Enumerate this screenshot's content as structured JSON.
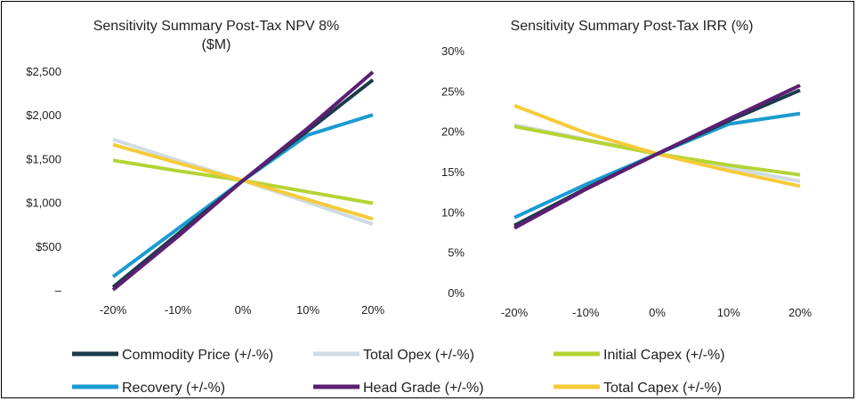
{
  "colors": {
    "commodity": "#1b3a4b",
    "opex": "#d0dbe5",
    "initcapex": "#b5d334",
    "recovery": "#1b9bd1",
    "headgrade": "#5b1f73",
    "totcapex": "#f5cb3a"
  },
  "chart_data": [
    {
      "type": "line",
      "title_line1": "Sensitivity Summary Post-Tax NPV 8%",
      "title_line2": "($M)",
      "x": [
        "-20%",
        "-10%",
        "0%",
        "10%",
        "20%"
      ],
      "ylim": [
        0,
        2500
      ],
      "yticks": [
        {
          "v": 0,
          "label": "–"
        },
        {
          "v": 500,
          "label": "$500"
        },
        {
          "v": 1000,
          "label": "$1,000"
        },
        {
          "v": 1500,
          "label": "$1,500"
        },
        {
          "v": 2000,
          "label": "$2,000"
        },
        {
          "v": 2500,
          "label": "$2,500"
        }
      ],
      "series": [
        {
          "key": "opex",
          "name": "Total Opex (+/-%)",
          "values": [
            1720,
            1480,
            1250,
            1000,
            750
          ]
        },
        {
          "key": "initcapex",
          "name": "Initial Capex (+/-%)",
          "values": [
            1480,
            1360,
            1250,
            1120,
            990
          ]
        },
        {
          "key": "totcapex",
          "name": "Total Capex (+/-%)",
          "values": [
            1660,
            1450,
            1250,
            1030,
            810
          ]
        },
        {
          "key": "recovery",
          "name": "Recovery (+/-%)",
          "values": [
            150,
            700,
            1250,
            1770,
            2000
          ]
        },
        {
          "key": "commodity",
          "name": "Commodity Price (+/-%)",
          "values": [
            30,
            640,
            1250,
            1820,
            2400
          ]
        },
        {
          "key": "headgrade",
          "name": "Head Grade (+/-%)",
          "values": [
            0,
            610,
            1250,
            1850,
            2490
          ]
        }
      ]
    },
    {
      "type": "line",
      "title_line1": "Sensitivity Summary Post-Tax IRR (%)",
      "title_line2": "",
      "x": [
        "-20%",
        "-10%",
        "0%",
        "10%",
        "20%"
      ],
      "ylim": [
        0,
        30
      ],
      "yticks": [
        {
          "v": 0,
          "label": "0%"
        },
        {
          "v": 5,
          "label": "5%"
        },
        {
          "v": 10,
          "label": "10%"
        },
        {
          "v": 15,
          "label": "15%"
        },
        {
          "v": 20,
          "label": "20%"
        },
        {
          "v": 25,
          "label": "25%"
        },
        {
          "v": 30,
          "label": "30%"
        }
      ],
      "series": [
        {
          "key": "opex",
          "name": "Total Opex (+/-%)",
          "values": [
            20.8,
            19.0,
            17.2,
            15.5,
            13.8
          ]
        },
        {
          "key": "initcapex",
          "name": "Initial Capex (+/-%)",
          "values": [
            20.6,
            18.9,
            17.2,
            15.8,
            14.6
          ]
        },
        {
          "key": "totcapex",
          "name": "Total Capex (+/-%)",
          "values": [
            23.2,
            19.8,
            17.2,
            15.1,
            13.2
          ]
        },
        {
          "key": "recovery",
          "name": "Recovery (+/-%)",
          "values": [
            9.3,
            13.4,
            17.2,
            20.9,
            22.2
          ]
        },
        {
          "key": "commodity",
          "name": "Commodity Price (+/-%)",
          "values": [
            8.3,
            12.9,
            17.2,
            21.3,
            25.1
          ]
        },
        {
          "key": "headgrade",
          "name": "Head Grade (+/-%)",
          "values": [
            8.0,
            12.8,
            17.2,
            21.5,
            25.7
          ]
        }
      ]
    }
  ],
  "legend": [
    {
      "key": "commodity",
      "label": "Commodity Price (+/-%)"
    },
    {
      "key": "opex",
      "label": "Total Opex (+/-%)"
    },
    {
      "key": "initcapex",
      "label": "Initial Capex (+/-%)"
    },
    {
      "key": "recovery",
      "label": "Recovery (+/-%)"
    },
    {
      "key": "headgrade",
      "label": "Head Grade (+/-%)"
    },
    {
      "key": "totcapex",
      "label": "Total Capex (+/-%)"
    }
  ]
}
